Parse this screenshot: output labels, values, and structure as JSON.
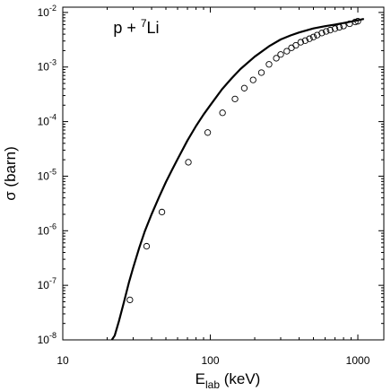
{
  "chart_data": {
    "type": "scatter",
    "title": "",
    "annotation": {
      "text": "p + ",
      "superscript": "7",
      "element": "Li"
    },
    "xlabel": {
      "main": "E",
      "sub": "lab",
      "unit": " (keV)"
    },
    "ylabel": "σ (barn)",
    "xscale": "log",
    "yscale": "log",
    "xlim": [
      10,
      1500
    ],
    "ylim": [
      1e-08,
      0.0125
    ],
    "grid": false,
    "legend": "none",
    "x_ticks": [
      {
        "value": 10,
        "label": "10"
      },
      {
        "value": 100,
        "label": "100"
      },
      {
        "value": 1000,
        "label": "1000"
      }
    ],
    "y_ticks": [
      {
        "value": 1e-08,
        "base": "10",
        "exp": "-8"
      },
      {
        "value": 1e-07,
        "base": "10",
        "exp": "-7"
      },
      {
        "value": 1e-06,
        "base": "10",
        "exp": "-6"
      },
      {
        "value": 1e-05,
        "base": "10",
        "exp": "-5"
      },
      {
        "value": 0.0001,
        "base": "10",
        "exp": "-4"
      },
      {
        "value": 0.001,
        "base": "10",
        "exp": "-3"
      },
      {
        "value": 0.01,
        "base": "10",
        "exp": "-2"
      }
    ],
    "series": [
      {
        "kind": "line",
        "color": "#000000",
        "x": [
          21.5,
          22.5,
          24,
          26,
          28,
          30,
          33,
          36,
          40,
          45,
          50,
          55,
          60,
          70,
          80,
          90,
          100,
          120,
          140,
          160,
          200,
          250,
          300,
          350,
          400,
          500,
          600,
          700,
          800,
          900,
          1000,
          1100
        ],
        "y": [
          1e-08,
          1.2e-08,
          2.2e-08,
          5e-08,
          1.1e-07,
          2.1e-07,
          4.9e-07,
          9.8e-07,
          2e-06,
          4.2e-06,
          7.8e-06,
          1.3e-05,
          2.05e-05,
          4.5e-05,
          8.3e-05,
          0.000135,
          0.0002,
          0.00039,
          0.00063,
          0.00092,
          0.00155,
          0.0024,
          0.0032,
          0.0038,
          0.0043,
          0.0051,
          0.0056,
          0.006,
          0.0064,
          0.0068,
          0.0072,
          0.0076
        ]
      },
      {
        "kind": "scatter",
        "marker": "open-circle",
        "color": "#000000",
        "x": [
          28.5,
          37,
          47,
          71,
          96,
          121,
          147,
          170,
          195,
          222,
          250,
          280,
          300,
          330,
          355,
          380,
          410,
          440,
          470,
          500,
          530,
          570,
          610,
          650,
          700,
          750,
          800,
          880,
          960,
          1000
        ],
        "y": [
          5.4e-08,
          5.2e-07,
          2.2e-06,
          1.8e-05,
          6.3e-05,
          0.000145,
          0.00026,
          0.00041,
          0.00058,
          0.00079,
          0.00112,
          0.00145,
          0.0017,
          0.00195,
          0.00225,
          0.0025,
          0.00285,
          0.00305,
          0.0033,
          0.00355,
          0.00385,
          0.0042,
          0.0045,
          0.00475,
          0.00505,
          0.00535,
          0.00565,
          0.0062,
          0.0067,
          0.0069
        ]
      }
    ]
  }
}
